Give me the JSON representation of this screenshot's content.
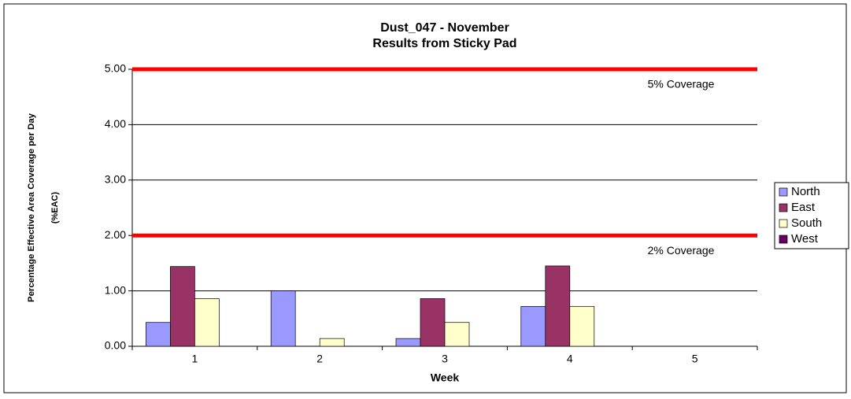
{
  "chart_data": {
    "type": "bar",
    "title": "Dust_047 - November",
    "subtitle": "Results from Sticky Pad",
    "x_label": "Week",
    "y_label": [
      "Percentage Effective Area Coverage per Day",
      "(%EAC)"
    ],
    "categories": [
      "1",
      "2",
      "3",
      "4",
      "5"
    ],
    "series": [
      {
        "name": "North",
        "color": "#9999ff",
        "values": [
          0.43,
          1.0,
          0.14,
          0.72,
          0
        ]
      },
      {
        "name": "East",
        "color": "#993366",
        "values": [
          1.44,
          0,
          0.86,
          1.45,
          0
        ]
      },
      {
        "name": "South",
        "color": "#ffffcc",
        "values": [
          0.86,
          0.14,
          0.43,
          0.72,
          0
        ]
      },
      {
        "name": "West",
        "color": "#660066",
        "values": [
          0,
          0,
          0,
          0,
          0
        ]
      }
    ],
    "reference_lines": [
      {
        "value": 5,
        "label": "5% Coverage",
        "color": "#ff0000"
      },
      {
        "value": 2,
        "label": "2% Coverage",
        "color": "#ff0000"
      }
    ],
    "ylim": [
      0,
      5
    ],
    "yticks": [
      {
        "value": 0,
        "label": "0.00"
      },
      {
        "value": 1,
        "label": "1.00"
      },
      {
        "value": 2,
        "label": "2.00"
      },
      {
        "value": 3,
        "label": "3.00"
      },
      {
        "value": 4,
        "label": "4.00"
      },
      {
        "value": 5,
        "label": "5.00"
      }
    ],
    "grid": true,
    "legend": "right"
  }
}
